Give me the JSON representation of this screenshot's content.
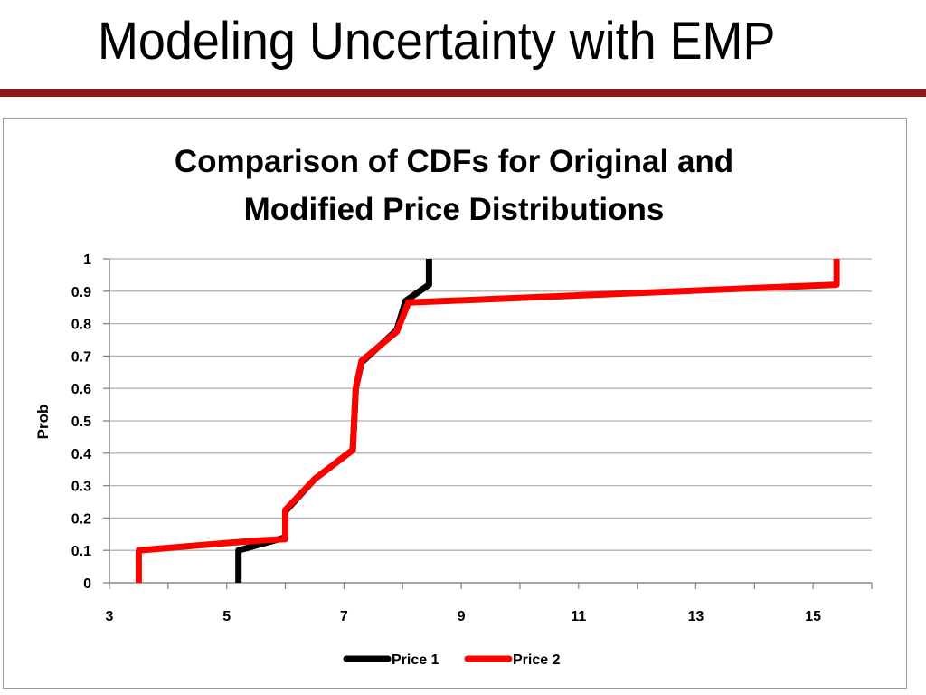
{
  "slide": {
    "title": "Modeling Uncertainty with EMP",
    "rule_color": "#8b1a1a"
  },
  "chart_data": {
    "type": "line",
    "title_line1": "Comparison of CDFs for Original and",
    "title_line2": "Modified Price Distributions",
    "xlabel": "",
    "ylabel": "Prob",
    "xlim": [
      3,
      16
    ],
    "ylim": [
      0,
      1
    ],
    "xticks": [
      3,
      5,
      7,
      9,
      11,
      13,
      15
    ],
    "yticks": [
      "0",
      "0.1",
      "0.2",
      "0.3",
      "0.4",
      "0.5",
      "0.6",
      "0.7",
      "0.8",
      "0.9",
      "1"
    ],
    "grid": true,
    "legend_position": "bottom",
    "series": [
      {
        "name": "Price 1",
        "color": "#000000",
        "points": [
          [
            5.2,
            0
          ],
          [
            5.2,
            0.1
          ],
          [
            5.6,
            0.12
          ],
          [
            6.0,
            0.14
          ],
          [
            6.0,
            0.22
          ],
          [
            6.5,
            0.32
          ],
          [
            7.15,
            0.41
          ],
          [
            7.2,
            0.6
          ],
          [
            7.3,
            0.68
          ],
          [
            7.9,
            0.78
          ],
          [
            8.05,
            0.87
          ],
          [
            8.45,
            0.92
          ],
          [
            8.45,
            1.0
          ]
        ]
      },
      {
        "name": "Price 2",
        "color": "#ff0000",
        "points": [
          [
            3.5,
            0
          ],
          [
            3.5,
            0.1
          ],
          [
            4.5,
            0.115
          ],
          [
            5.5,
            0.13
          ],
          [
            6.0,
            0.135
          ],
          [
            6.0,
            0.225
          ],
          [
            6.5,
            0.32
          ],
          [
            7.15,
            0.41
          ],
          [
            7.2,
            0.6
          ],
          [
            7.3,
            0.685
          ],
          [
            7.9,
            0.775
          ],
          [
            8.1,
            0.865
          ],
          [
            15.4,
            0.92
          ],
          [
            15.4,
            1.0
          ]
        ]
      }
    ]
  }
}
